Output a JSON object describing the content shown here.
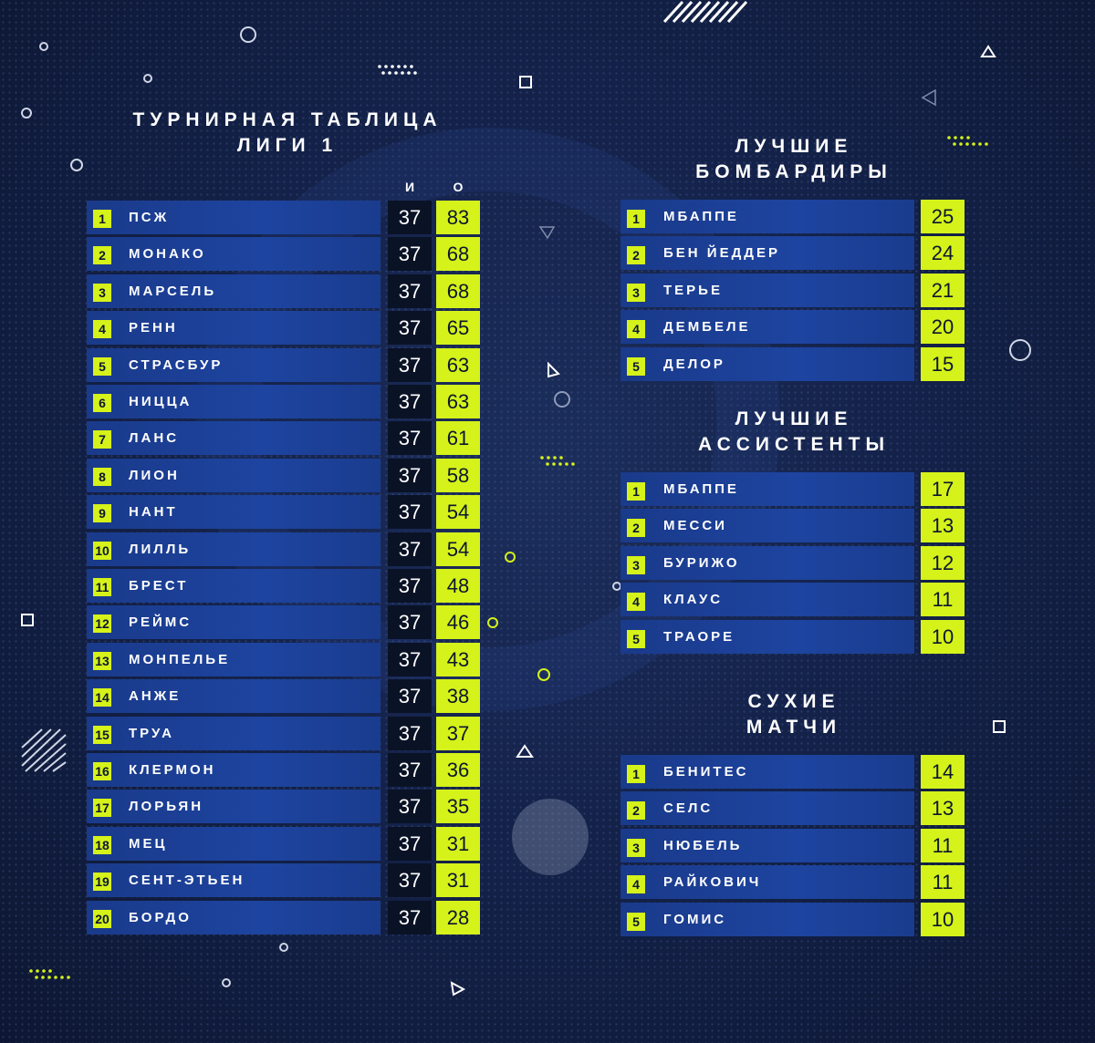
{
  "league": {
    "title_line1": "ТУРНИРНАЯ ТАБЛИЦА",
    "title_line2": "ЛИГИ 1",
    "col_games": "И",
    "col_points": "О",
    "rows": [
      {
        "rank": "1",
        "team": "ПСЖ",
        "games": "37",
        "points": "83"
      },
      {
        "rank": "2",
        "team": "МОНАКО",
        "games": "37",
        "points": "68"
      },
      {
        "rank": "3",
        "team": "МАРСЕЛЬ",
        "games": "37",
        "points": "68"
      },
      {
        "rank": "4",
        "team": "РЕНН",
        "games": "37",
        "points": "65"
      },
      {
        "rank": "5",
        "team": "СТРАСБУР",
        "games": "37",
        "points": "63"
      },
      {
        "rank": "6",
        "team": "НИЦЦА",
        "games": "37",
        "points": "63"
      },
      {
        "rank": "7",
        "team": "ЛАНС",
        "games": "37",
        "points": "61"
      },
      {
        "rank": "8",
        "team": "ЛИОН",
        "games": "37",
        "points": "58"
      },
      {
        "rank": "9",
        "team": "НАНТ",
        "games": "37",
        "points": "54"
      },
      {
        "rank": "10",
        "team": "ЛИЛЛЬ",
        "games": "37",
        "points": "54"
      },
      {
        "rank": "11",
        "team": "БРЕСТ",
        "games": "37",
        "points": "48"
      },
      {
        "rank": "12",
        "team": "РЕЙМС",
        "games": "37",
        "points": "46"
      },
      {
        "rank": "13",
        "team": "МОНПЕЛЬЕ",
        "games": "37",
        "points": "43"
      },
      {
        "rank": "14",
        "team": "АНЖЕ",
        "games": "37",
        "points": "38"
      },
      {
        "rank": "15",
        "team": "ТРУА",
        "games": "37",
        "points": "37"
      },
      {
        "rank": "16",
        "team": "КЛЕРМОН",
        "games": "37",
        "points": "36"
      },
      {
        "rank": "17",
        "team": "ЛОРЬЯН",
        "games": "37",
        "points": "35"
      },
      {
        "rank": "18",
        "team": "МЕЦ",
        "games": "37",
        "points": "31"
      },
      {
        "rank": "19",
        "team": "СЕНТ-ЭТЬЕН",
        "games": "37",
        "points": "31"
      },
      {
        "rank": "20",
        "team": "БОРДО",
        "games": "37",
        "points": "28"
      }
    ]
  },
  "scorers": {
    "title_line1": "ЛУЧШИЕ",
    "title_line2": "БОМБАРДИРЫ",
    "rows": [
      {
        "rank": "1",
        "name": "МБАППЕ",
        "value": "25"
      },
      {
        "rank": "2",
        "name": "БЕН ЙЕДДЕР",
        "value": "24"
      },
      {
        "rank": "3",
        "name": "ТЕРЬЕ",
        "value": "21"
      },
      {
        "rank": "4",
        "name": "ДЕМБЕЛЕ",
        "value": "20"
      },
      {
        "rank": "5",
        "name": "ДЕЛОР",
        "value": "15"
      }
    ]
  },
  "assists": {
    "title_line1": "ЛУЧШИЕ",
    "title_line2": "АССИСТЕНТЫ",
    "rows": [
      {
        "rank": "1",
        "name": "МБАППЕ",
        "value": "17"
      },
      {
        "rank": "2",
        "name": "МЕССИ",
        "value": "13"
      },
      {
        "rank": "3",
        "name": "БУРИЖО",
        "value": "12"
      },
      {
        "rank": "4",
        "name": "КЛАУС",
        "value": "11"
      },
      {
        "rank": "5",
        "name": "ТРАОРЕ",
        "value": "10"
      }
    ]
  },
  "cleansheets": {
    "title_line1": "СУХИЕ",
    "title_line2": "МАТЧИ",
    "rows": [
      {
        "rank": "1",
        "name": "БЕНИТЕС",
        "value": "14"
      },
      {
        "rank": "2",
        "name": "СЕЛС",
        "value": "13"
      },
      {
        "rank": "3",
        "name": "НЮБЕЛЬ",
        "value": "11"
      },
      {
        "rank": "4",
        "name": "РАЙКОВИЧ",
        "value": "11"
      },
      {
        "rank": "5",
        "name": "ГОМИС",
        "value": "10"
      }
    ]
  },
  "colors": {
    "accent": "#d5f21a",
    "bar": "#1d44a0",
    "background": "#14224a",
    "dark_cell": "#0a1226"
  }
}
